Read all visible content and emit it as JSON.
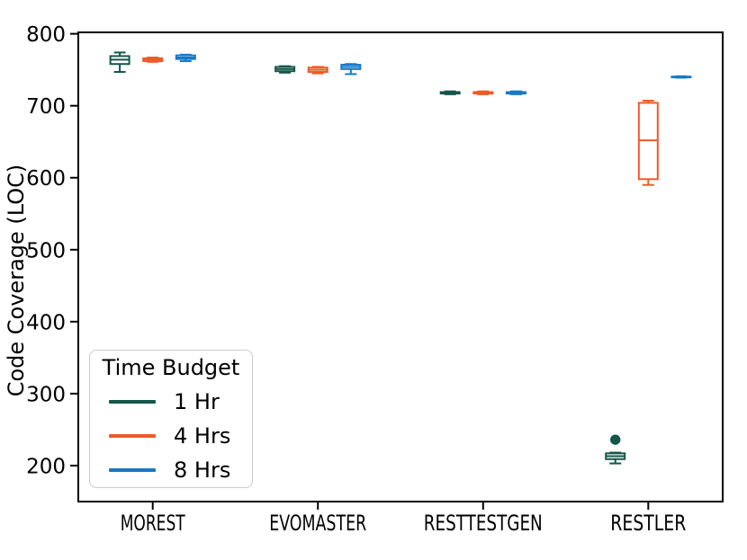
{
  "chart_data": {
    "type": "boxplot",
    "title": "",
    "xlabel": "",
    "ylabel": "Code Coverage (LOC)",
    "categories": [
      "MOREST",
      "EVOMASTER",
      "RESTTESTGEN",
      "RESTLER"
    ],
    "ylim": [
      150,
      802
    ],
    "yticks": [
      200,
      300,
      400,
      500,
      600,
      700,
      800
    ],
    "grid": false,
    "legend": {
      "title": "Time Budget",
      "position": "lower-left"
    },
    "series": [
      {
        "name": "1 Hr",
        "color": "#14564a",
        "boxes": [
          {
            "whislo": 747,
            "q1": 758,
            "med": 764,
            "q3": 769,
            "whishi": 774,
            "fliers": []
          },
          {
            "whislo": 746,
            "q1": 748,
            "med": 751,
            "q3": 754,
            "whishi": 755,
            "fliers": []
          },
          {
            "whislo": 716,
            "q1": 717,
            "med": 718,
            "q3": 719,
            "whishi": 720,
            "fliers": []
          },
          {
            "whislo": 203,
            "q1": 209,
            "med": 213,
            "q3": 217,
            "whishi": 218,
            "fliers": [
              236
            ]
          }
        ]
      },
      {
        "name": "4 Hrs",
        "color": "#ef5a28",
        "boxes": [
          {
            "whislo": 761,
            "q1": 762,
            "med": 764,
            "q3": 766,
            "whishi": 767,
            "fliers": []
          },
          {
            "whislo": 745,
            "q1": 747,
            "med": 750,
            "q3": 753,
            "whishi": 754,
            "fliers": []
          },
          {
            "whislo": 716,
            "q1": 717,
            "med": 718,
            "q3": 719,
            "whishi": 720,
            "fliers": []
          },
          {
            "whislo": 590,
            "q1": 598,
            "med": 652,
            "q3": 704,
            "whishi": 707,
            "fliers": []
          }
        ]
      },
      {
        "name": "8 Hrs",
        "color": "#1878c4",
        "boxes": [
          {
            "whislo": 762,
            "q1": 765,
            "med": 767,
            "q3": 770,
            "whishi": 771,
            "fliers": []
          },
          {
            "whislo": 744,
            "q1": 751,
            "med": 754,
            "q3": 757,
            "whishi": 758,
            "fliers": []
          },
          {
            "whislo": 716,
            "q1": 717,
            "med": 718,
            "q3": 719,
            "whishi": 720,
            "fliers": []
          },
          {
            "whislo": 739,
            "q1": 739.5,
            "med": 740,
            "q3": 740.5,
            "whishi": 741,
            "fliers": []
          }
        ]
      }
    ]
  }
}
